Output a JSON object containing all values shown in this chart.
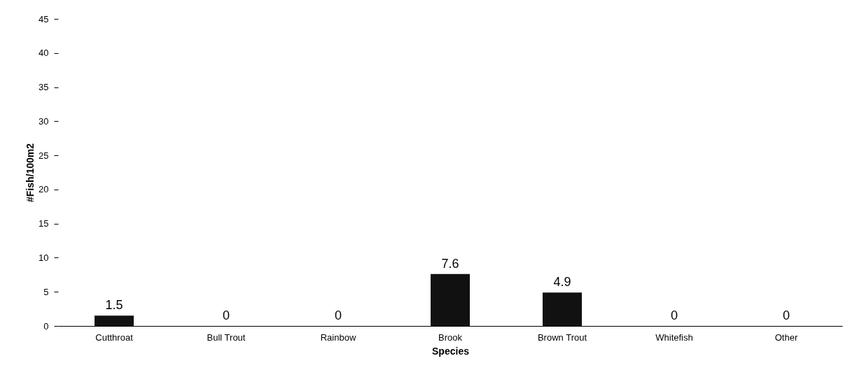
{
  "chart_data": {
    "type": "bar",
    "xlabel": "Species",
    "ylabel": "#Fish/100m2",
    "categories": [
      "Cutthroat",
      "Bull Trout",
      "Rainbow",
      "Brook",
      "Brown Trout",
      "Whitefish",
      "Other"
    ],
    "values": [
      1.5,
      0,
      0,
      7.6,
      4.9,
      0,
      0
    ],
    "color": "#111111",
    "ylim": [
      0,
      45
    ],
    "yticks": [
      0,
      5,
      10,
      15,
      20,
      25,
      30,
      35,
      40,
      45
    ],
    "grid": false,
    "data_labels": true
  }
}
